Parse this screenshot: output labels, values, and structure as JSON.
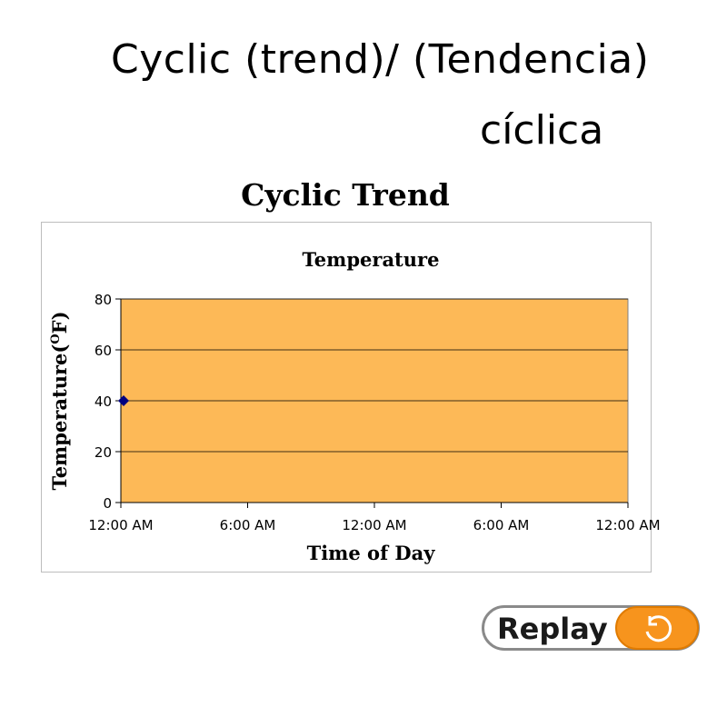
{
  "slide": {
    "title_line1": "Cyclic (trend)/ (Tendencia)",
    "title_line2": "cíclica"
  },
  "chart_heading": "Cyclic Trend",
  "replay_button": {
    "label": "Replay",
    "icon": "replay-icon",
    "accent": "#f7941d"
  },
  "chart_data": {
    "type": "scatter",
    "title": "Temperature",
    "xlabel": "Time of Day",
    "ylabel": "Temperature(",
    "ylabel_sup": "O",
    "ylabel_end": "F)",
    "x_ticks": [
      "12:00 AM",
      "6:00 AM",
      "12:00 AM",
      "6:00 AM",
      "12:00 AM"
    ],
    "y_ticks": [
      "0",
      "20",
      "40",
      "60",
      "80"
    ],
    "ylim": [
      0,
      80
    ],
    "xlim_hours": [
      0,
      48
    ],
    "series": [
      {
        "points": [
          {
            "x_hours": 0,
            "y": 40
          }
        ],
        "color": "#000080",
        "marker": "diamond"
      }
    ],
    "plot_background": "#fdb957",
    "grid": true
  }
}
